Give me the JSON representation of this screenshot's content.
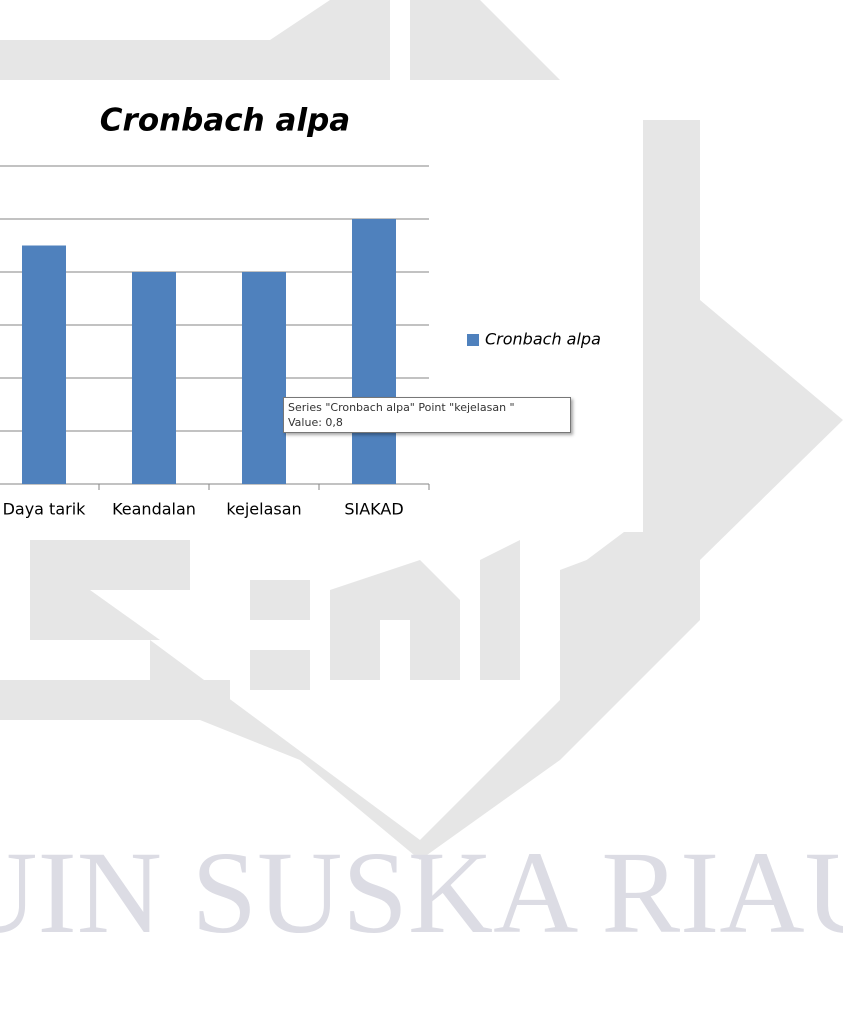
{
  "chart_data": {
    "type": "bar",
    "title": "Cronbach alpa",
    "categories": [
      "Daya tarik",
      "Keandalan",
      "kejelasan",
      "SIAKAD"
    ],
    "series": [
      {
        "name": "Cronbach alpa",
        "color": "#4f81bd",
        "values": [
          0.9,
          0.8,
          0.8,
          1.0
        ]
      }
    ],
    "ylim": [
      0,
      1.2
    ],
    "yticks": [
      0,
      0.2,
      0.4,
      0.6,
      0.8,
      1.0,
      1.2
    ],
    "grid": true,
    "legend": "right",
    "tooltip": {
      "line1": "Series \"Cronbach alpa\" Point \"kejelasan \"",
      "line2": "Value: 0,8"
    }
  },
  "watermark": {
    "text": "UIN SUSKA RIAU"
  }
}
